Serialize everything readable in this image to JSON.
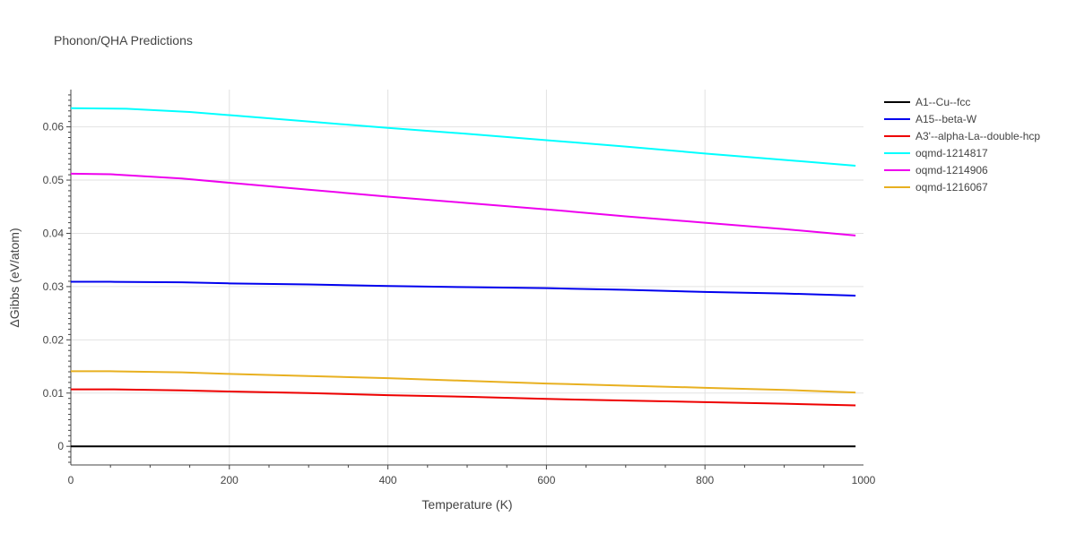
{
  "chart_data": {
    "type": "line",
    "title": "Phonon/QHA Predictions",
    "xlabel": "Temperature (K)",
    "ylabel": "ΔGibbs (eV/atom)",
    "xlim": [
      0,
      1000
    ],
    "ylim": [
      -0.0035,
      0.067
    ],
    "x_ticks": [
      0,
      200,
      400,
      600,
      800,
      1000
    ],
    "x_tick_labels": [
      "0",
      "200",
      "400",
      "600",
      "800",
      "1000"
    ],
    "y_ticks": [
      0,
      0.01,
      0.02,
      0.03,
      0.04,
      0.05,
      0.06
    ],
    "y_tick_labels": [
      "0",
      "0.01",
      "0.02",
      "0.03",
      "0.04",
      "0.05",
      "0.06"
    ],
    "grid": true,
    "legend_position": "right",
    "series": [
      {
        "name": "A1--Cu--fcc",
        "color": "#000000",
        "x": [
          0,
          100,
          200,
          300,
          400,
          500,
          600,
          700,
          800,
          900,
          990
        ],
        "y": [
          0,
          0,
          0,
          0,
          0,
          0,
          0,
          0,
          0,
          0,
          0
        ]
      },
      {
        "name": "A15--beta-W",
        "color": "#0000ee",
        "x": [
          0,
          50,
          140,
          200,
          300,
          400,
          500,
          600,
          700,
          800,
          900,
          990
        ],
        "y": [
          0.0309,
          0.0309,
          0.0308,
          0.0306,
          0.0304,
          0.0301,
          0.0299,
          0.0297,
          0.0294,
          0.029,
          0.0287,
          0.0283
        ]
      },
      {
        "name": "A3'--alpha-La--double-hcp",
        "color": "#ee0000",
        "x": [
          0,
          50,
          140,
          200,
          300,
          400,
          500,
          600,
          700,
          800,
          900,
          990
        ],
        "y": [
          0.0107,
          0.0107,
          0.0105,
          0.0103,
          0.01,
          0.0096,
          0.0093,
          0.0089,
          0.0086,
          0.0083,
          0.008,
          0.0077
        ]
      },
      {
        "name": "oqmd-1214817",
        "color": "#00ffff",
        "x": [
          0,
          70,
          150,
          200,
          300,
          400,
          500,
          600,
          700,
          800,
          900,
          990
        ],
        "y": [
          0.0635,
          0.0634,
          0.0628,
          0.0622,
          0.061,
          0.0598,
          0.0587,
          0.0575,
          0.0563,
          0.055,
          0.0538,
          0.0527
        ]
      },
      {
        "name": "oqmd-1214906",
        "color": "#ee00ee",
        "x": [
          0,
          50,
          140,
          200,
          300,
          400,
          500,
          600,
          700,
          800,
          900,
          990
        ],
        "y": [
          0.0512,
          0.0511,
          0.0503,
          0.0495,
          0.0482,
          0.0469,
          0.0457,
          0.0445,
          0.0432,
          0.042,
          0.0408,
          0.0396
        ]
      },
      {
        "name": "oqmd-1216067",
        "color": "#e8b020",
        "x": [
          0,
          50,
          140,
          200,
          300,
          400,
          500,
          600,
          700,
          800,
          900,
          990
        ],
        "y": [
          0.0141,
          0.0141,
          0.0139,
          0.0136,
          0.0132,
          0.0128,
          0.0123,
          0.0118,
          0.0114,
          0.011,
          0.0106,
          0.0101
        ]
      }
    ]
  }
}
